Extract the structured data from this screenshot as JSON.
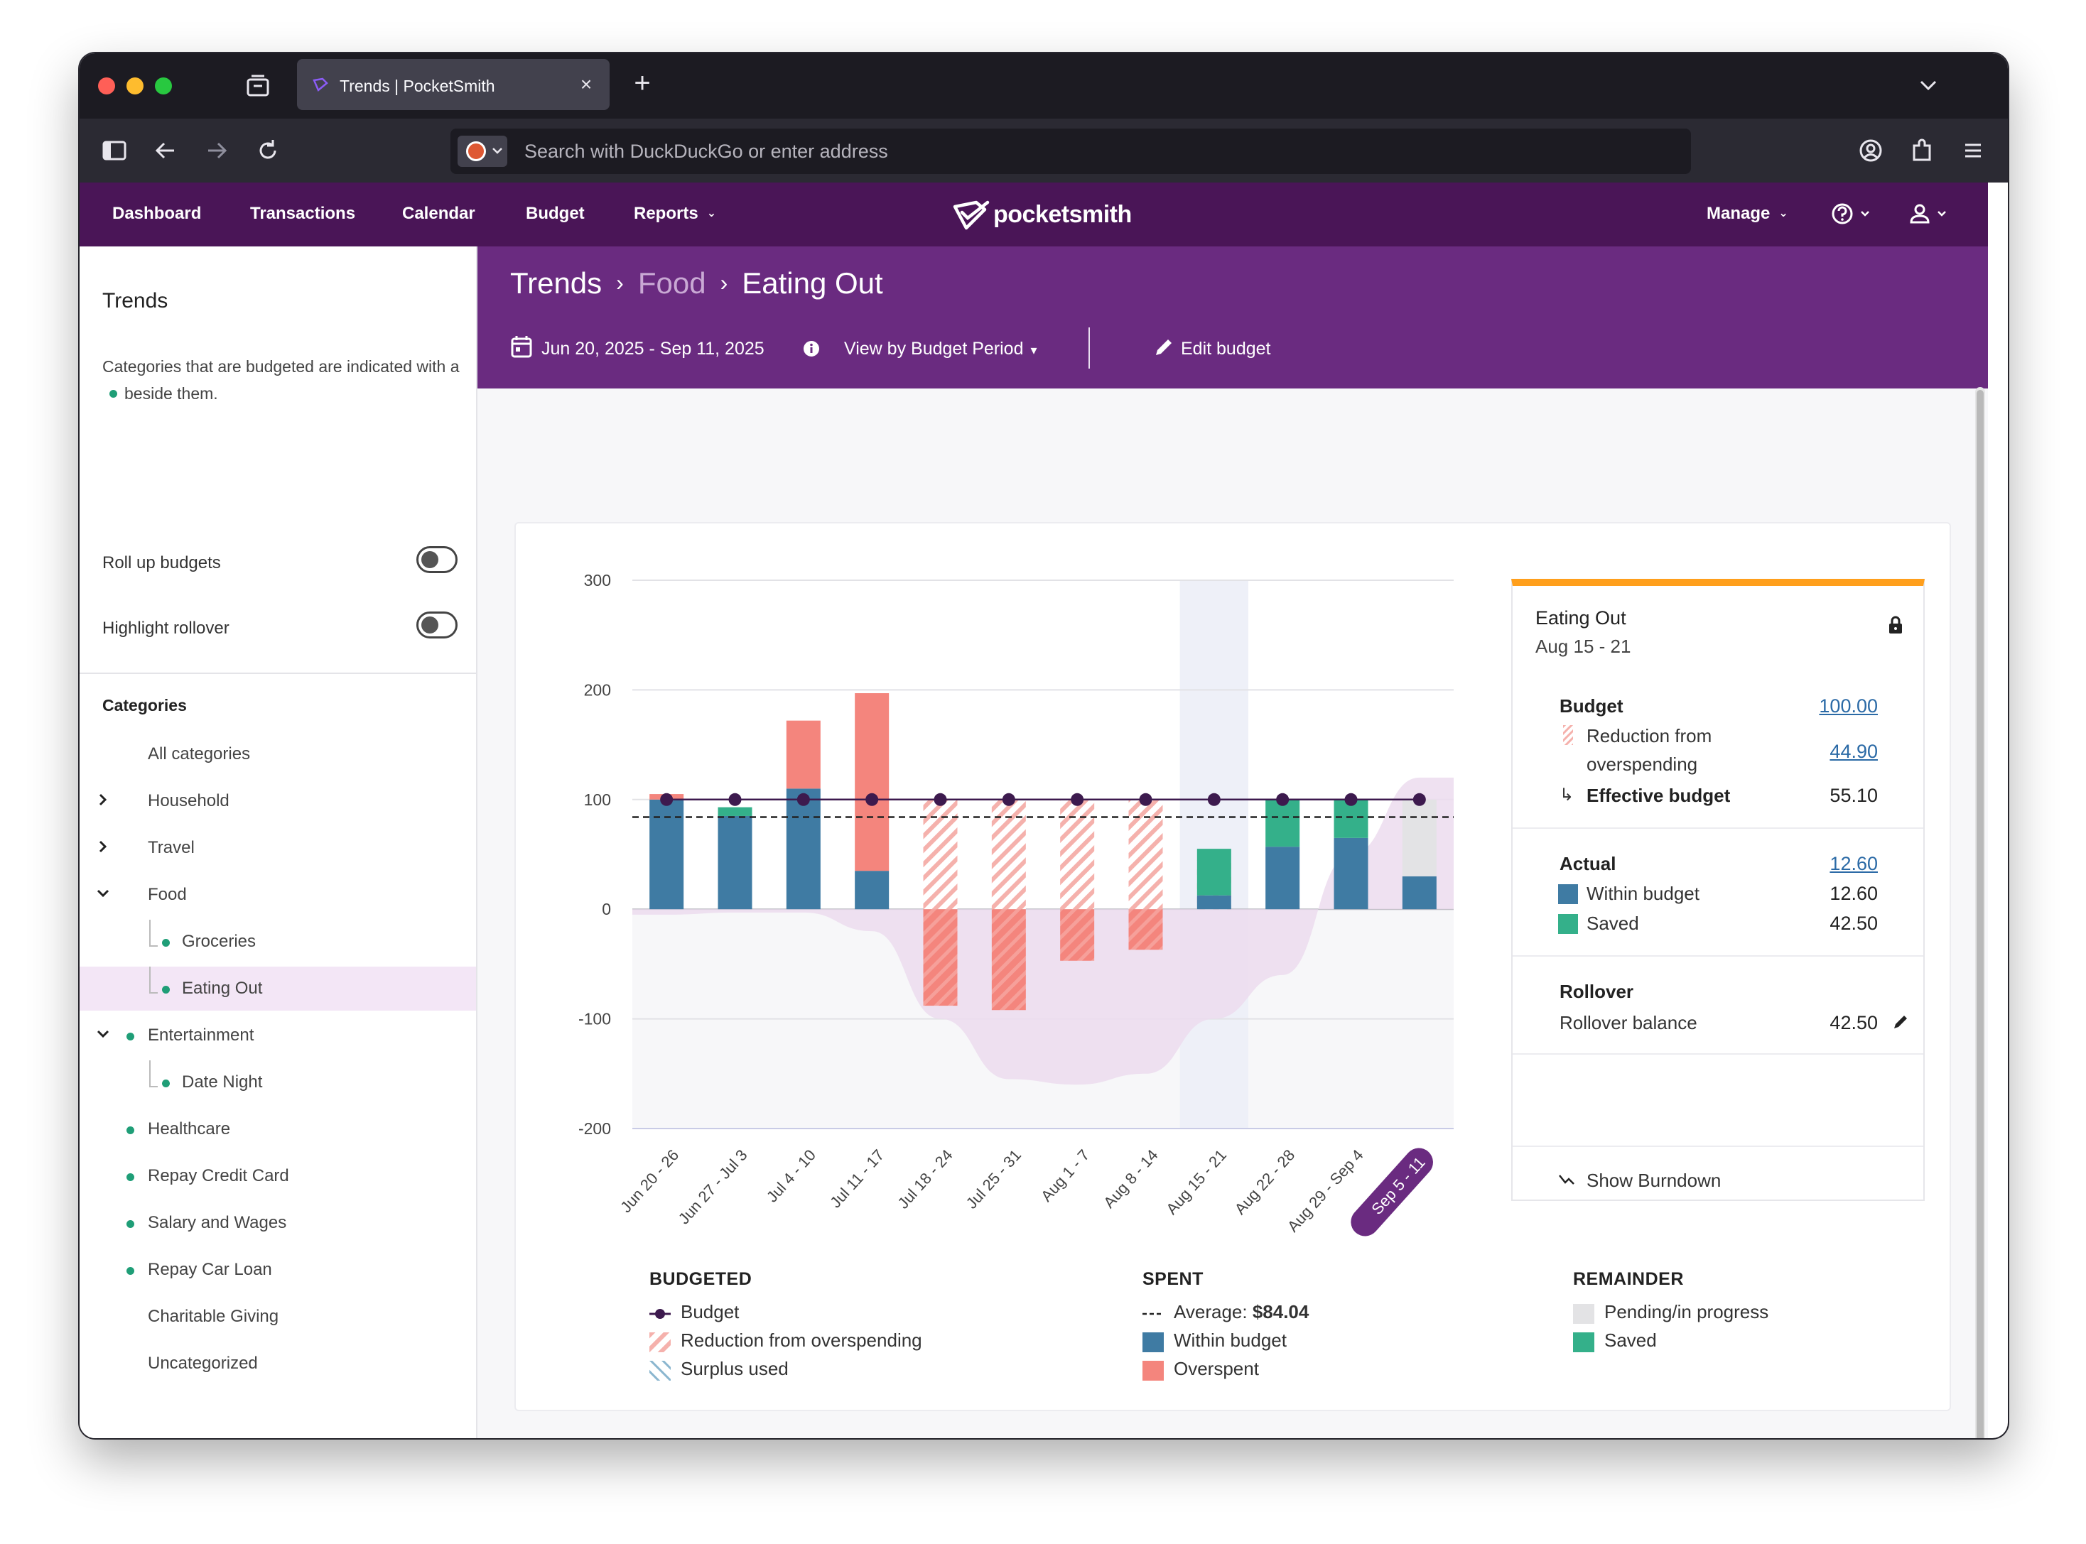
{
  "browser": {
    "tab_title": "Trends | PocketSmith",
    "url_placeholder": "Search with DuckDuckGo or enter address"
  },
  "nav": {
    "items": [
      "Dashboard",
      "Transactions",
      "Calendar",
      "Budget",
      "Reports"
    ],
    "brand": "pocketsmith",
    "manage": "Manage"
  },
  "sidebar": {
    "title": "Trends",
    "description_prefix": "Categories that are budgeted are indicated with a",
    "description_suffix": "beside them.",
    "roll_up_label": "Roll up budgets",
    "highlight_label": "Highlight rollover",
    "categories_title": "Categories",
    "categories": [
      {
        "label": "All categories",
        "chevron": "",
        "budgeted": false,
        "child": false,
        "active": false
      },
      {
        "label": "Household",
        "chevron": "right",
        "budgeted": false,
        "child": false,
        "active": false
      },
      {
        "label": "Travel",
        "chevron": "right",
        "budgeted": false,
        "child": false,
        "active": false
      },
      {
        "label": "Food",
        "chevron": "down",
        "budgeted": false,
        "child": false,
        "active": false
      },
      {
        "label": "Groceries",
        "chevron": "",
        "budgeted": true,
        "child": true,
        "active": false
      },
      {
        "label": "Eating Out",
        "chevron": "",
        "budgeted": true,
        "child": true,
        "active": true
      },
      {
        "label": "Entertainment",
        "chevron": "down",
        "budgeted": true,
        "child": false,
        "active": false
      },
      {
        "label": "Date Night",
        "chevron": "",
        "budgeted": true,
        "child": true,
        "active": false
      },
      {
        "label": "Healthcare",
        "chevron": "",
        "budgeted": true,
        "child": false,
        "active": false
      },
      {
        "label": "Repay Credit Card",
        "chevron": "",
        "budgeted": true,
        "child": false,
        "active": false
      },
      {
        "label": "Salary and Wages",
        "chevron": "",
        "budgeted": true,
        "child": false,
        "active": false
      },
      {
        "label": "Repay Car Loan",
        "chevron": "",
        "budgeted": true,
        "child": false,
        "active": false
      },
      {
        "label": "Charitable Giving",
        "chevron": "",
        "budgeted": false,
        "child": false,
        "active": false
      },
      {
        "label": "Uncategorized",
        "chevron": "",
        "budgeted": false,
        "child": false,
        "active": false
      }
    ]
  },
  "header": {
    "crumb1": "Trends",
    "crumb2": "Food",
    "crumb3": "Eating Out",
    "date_range": "Jun 20, 2025 - Sep 11, 2025",
    "view_by": "View by Budget Period",
    "edit_budget": "Edit budget"
  },
  "chart_data": {
    "type": "bar",
    "categories": [
      "Jun 20 - 26",
      "Jun 27 - Jul 3",
      "Jul 4 - 10",
      "Jul 11 - 17",
      "Jul 18 - 24",
      "Jul 25 - 31",
      "Aug 1 - 7",
      "Aug 8 - 14",
      "Aug 15 - 21",
      "Aug 22 - 28",
      "Aug 29 - Sep 4",
      "Sep 5 - 11"
    ],
    "ylim": [
      -200,
      300
    ],
    "yticks": [
      300,
      200,
      100,
      0,
      -100,
      -200
    ],
    "budget": [
      100,
      100,
      100,
      100,
      100,
      100,
      100,
      100,
      100,
      100,
      100,
      100
    ],
    "average": 84.04,
    "series": [
      {
        "name": "Within budget",
        "color": "#3f7ba3",
        "values": [
          100,
          85,
          110,
          35,
          0,
          0,
          0,
          0,
          12.6,
          57,
          65,
          30
        ]
      },
      {
        "name": "Overspent",
        "color": "#f4857d",
        "values": [
          5,
          0,
          62,
          162,
          -88,
          -92,
          -47,
          -37,
          0,
          0,
          0,
          0
        ]
      },
      {
        "name": "Saved",
        "color": "#34b08a",
        "values": [
          0,
          8,
          0,
          0,
          0,
          0,
          0,
          0,
          42.5,
          43,
          35,
          0
        ]
      },
      {
        "name": "Pending/in progress",
        "color": "#e3e3e5",
        "values": [
          0,
          0,
          0,
          0,
          0,
          0,
          0,
          0,
          0,
          0,
          0,
          70
        ]
      },
      {
        "name": "Reduction from overspending",
        "color": "#f4a9a4",
        "values": [
          0,
          0,
          0,
          0,
          100,
          100,
          100,
          100,
          44.9,
          0,
          0,
          0
        ]
      }
    ],
    "rollover_area": [
      -5,
      -3,
      -3,
      -20,
      -100,
      -155,
      -160,
      -150,
      -100,
      -60,
      50,
      120
    ],
    "highlighted_period": "Aug 15 - 21",
    "selected_label": "Sep 5 - 11"
  },
  "legend": {
    "budgeted_title": "BUDGETED",
    "budget": "Budget",
    "reduction": "Reduction from overspending",
    "surplus": "Surplus used",
    "spent_title": "SPENT",
    "average_label": "Average:",
    "average_value": "$84.04",
    "within": "Within budget",
    "overspent": "Overspent",
    "remainder_title": "REMAINDER",
    "pending": "Pending/in progress",
    "saved": "Saved"
  },
  "panel": {
    "title": "Eating Out",
    "period": "Aug 15 - 21",
    "budget_label": "Budget",
    "budget_value": "100.00",
    "reduction_label_1": "Reduction from",
    "reduction_label_2": "overspending",
    "reduction_value": "44.90",
    "effective_label": "Effective budget",
    "effective_value": "55.10",
    "actual_label": "Actual",
    "actual_value": "12.60",
    "within_label": "Within budget",
    "within_value": "12.60",
    "saved_label": "Saved",
    "saved_value": "42.50",
    "rollover_title": "Rollover",
    "rollover_label": "Rollover balance",
    "rollover_value": "42.50",
    "burndown": "Show Burndown"
  },
  "colors": {
    "header_bg": "#4a1557",
    "purple_bg": "#6a2b80",
    "within": "#3f7ba3",
    "overspent": "#f4857d",
    "saved": "#34b08a",
    "budget_line": "#3d1a4e",
    "accent": "#ff9f1c"
  }
}
